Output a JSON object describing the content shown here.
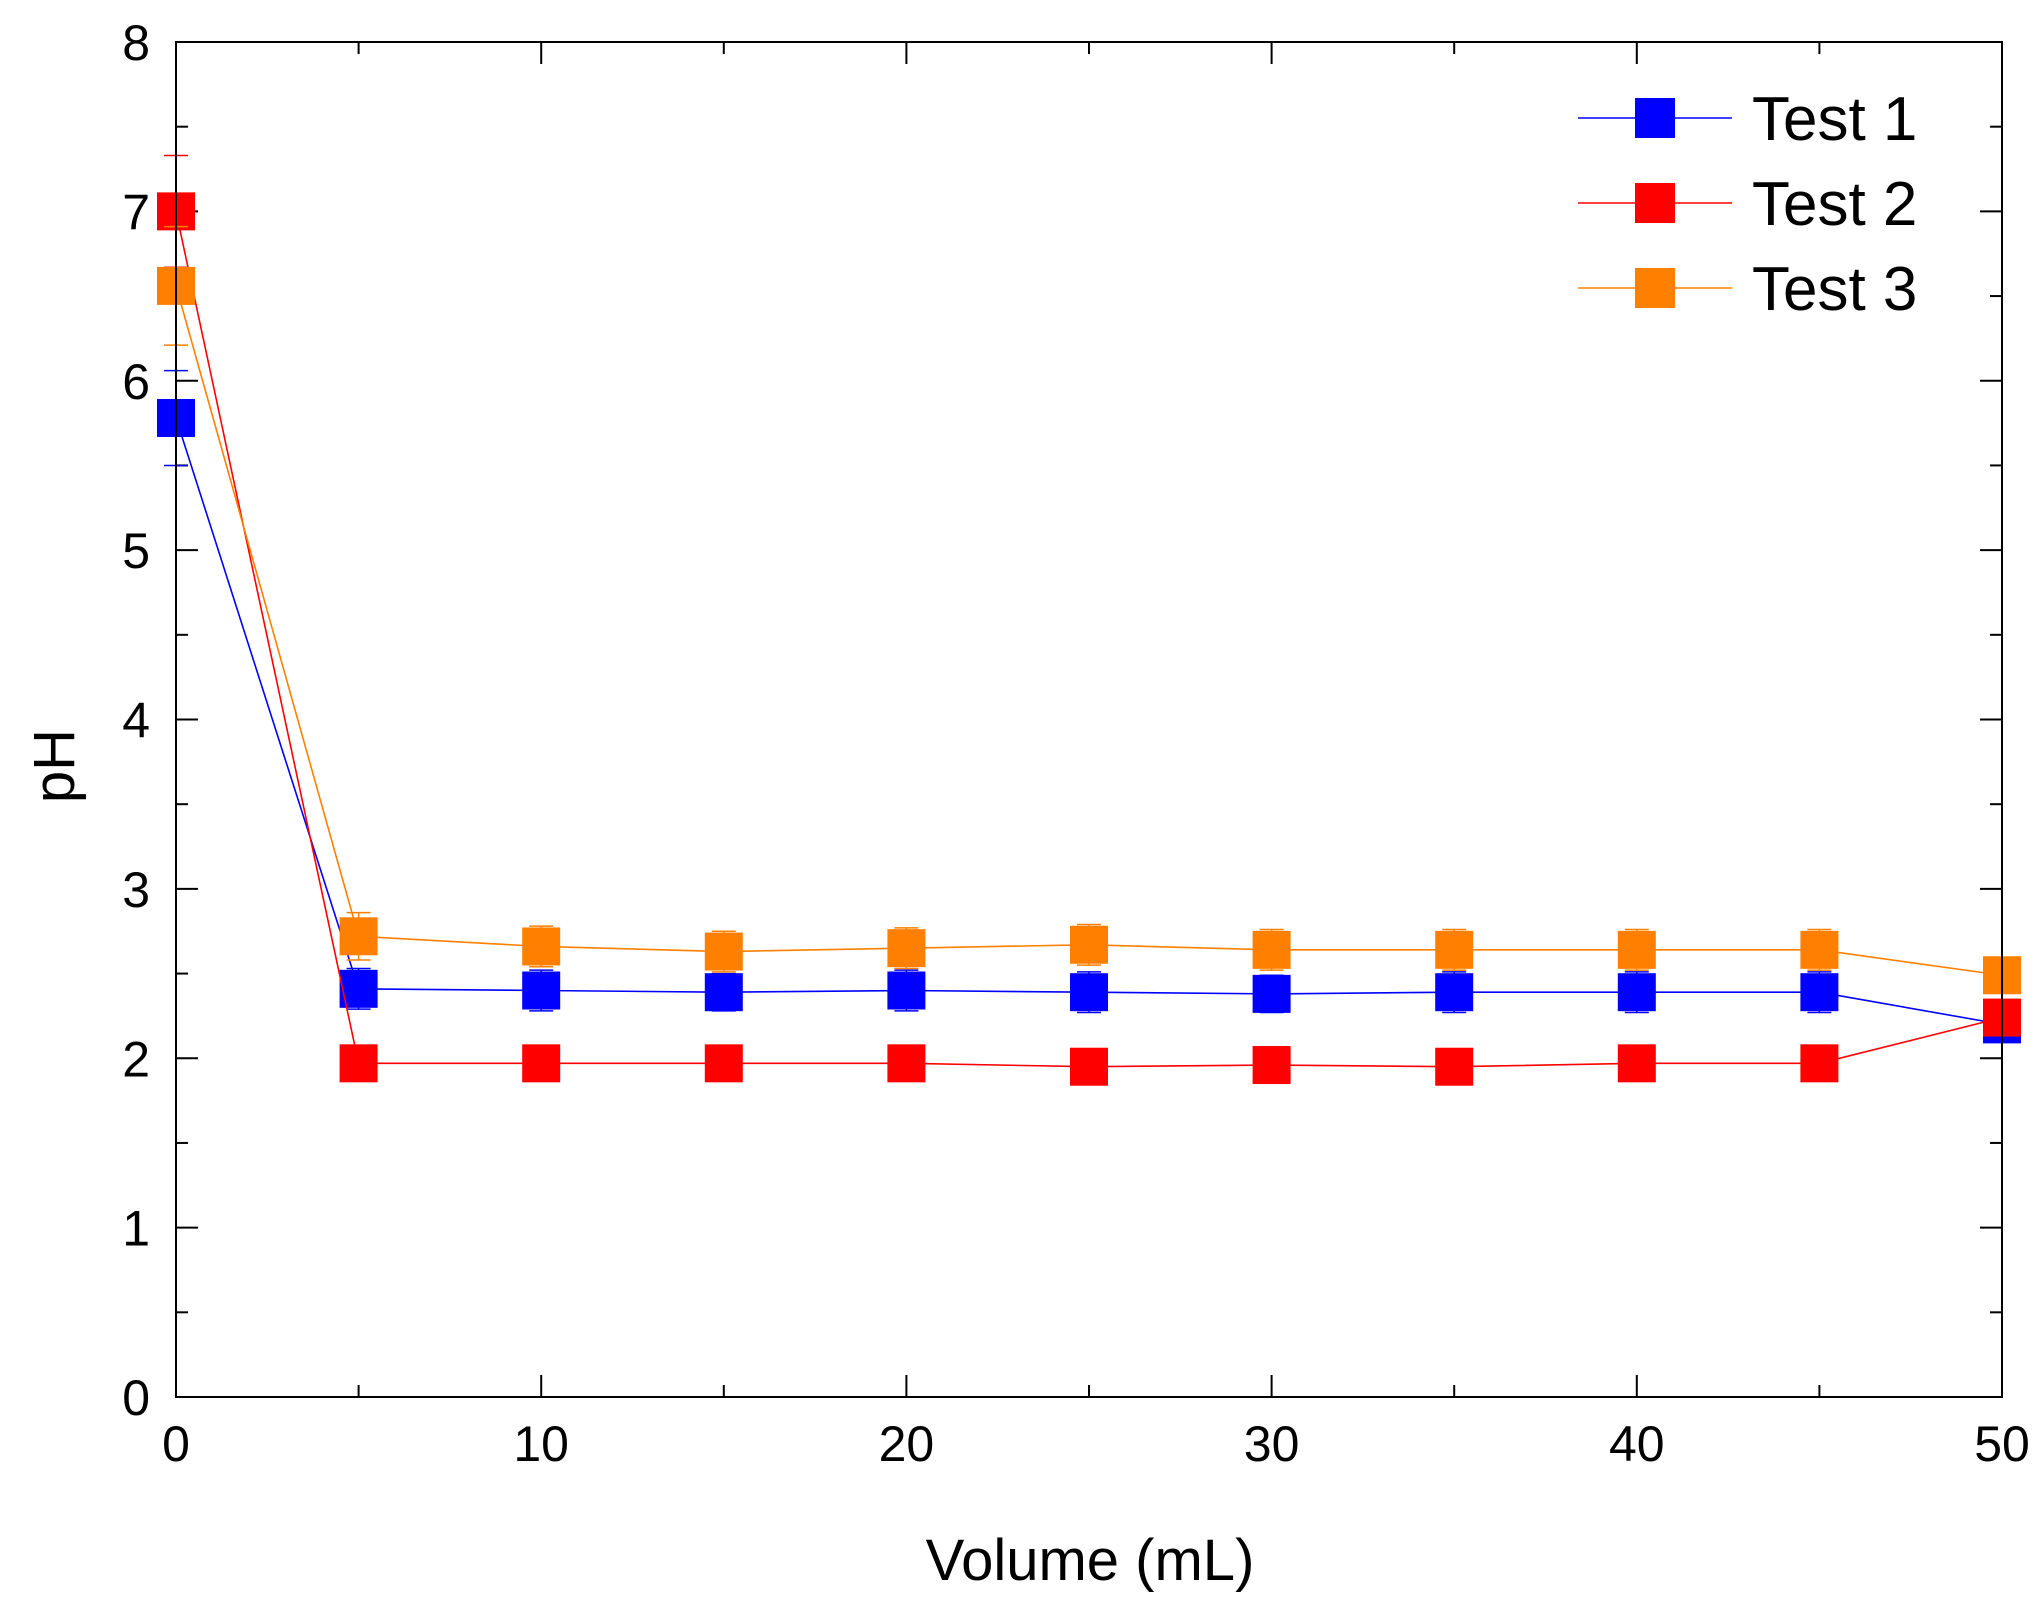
{
  "chart_data": {
    "type": "line",
    "title": "",
    "xlabel": "Volume (mL)",
    "ylabel": "pH",
    "xlim": [
      0,
      50
    ],
    "ylim": [
      0,
      8
    ],
    "xticks": [
      0,
      10,
      20,
      30,
      40,
      50
    ],
    "yticks": [
      0,
      1,
      2,
      3,
      4,
      5,
      6,
      7,
      8
    ],
    "xtick_labels": [
      "0",
      "10",
      "20",
      "30",
      "40",
      "50"
    ],
    "ytick_labels": [
      "0",
      "1",
      "2",
      "3",
      "4",
      "5",
      "6",
      "7",
      "8"
    ],
    "grid": false,
    "legend_position": "top-right",
    "x": [
      0,
      5,
      10,
      15,
      20,
      25,
      30,
      35,
      40,
      45,
      50
    ],
    "series": [
      {
        "name": "Test 1",
        "color": "#0000ff",
        "marker": "square",
        "values": [
          5.78,
          2.41,
          2.4,
          2.39,
          2.4,
          2.39,
          2.38,
          2.39,
          2.39,
          2.39,
          2.2
        ],
        "errors": [
          0.28,
          0.12,
          0.12,
          0.11,
          0.12,
          0.12,
          0.11,
          0.12,
          0.12,
          0.12,
          0.05
        ]
      },
      {
        "name": "Test 2",
        "color": "#ff0000",
        "marker": "square",
        "values": [
          7.0,
          1.97,
          1.97,
          1.97,
          1.97,
          1.95,
          1.96,
          1.95,
          1.97,
          1.97,
          2.24
        ],
        "errors": [
          0.33,
          0.05,
          0.05,
          0.05,
          0.05,
          0.05,
          0.05,
          0.05,
          0.05,
          0.05,
          0.08
        ]
      },
      {
        "name": "Test 3",
        "color": "#ff8000",
        "marker": "square",
        "values": [
          6.56,
          2.72,
          2.66,
          2.63,
          2.65,
          2.67,
          2.64,
          2.64,
          2.64,
          2.64,
          2.49
        ],
        "errors": [
          0.35,
          0.14,
          0.12,
          0.12,
          0.12,
          0.12,
          0.12,
          0.12,
          0.12,
          0.12,
          0.08
        ]
      }
    ]
  }
}
